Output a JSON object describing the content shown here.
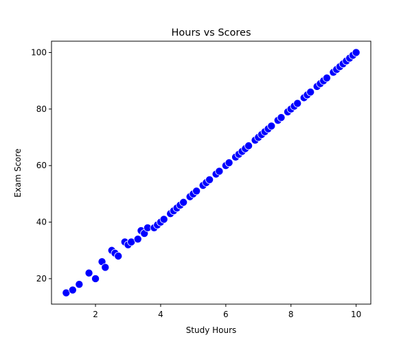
{
  "chart_data": {
    "type": "scatter",
    "title": "Hours vs Scores",
    "xlabel": "Study Hours",
    "ylabel": "Exam Score",
    "xlim": [
      0.65,
      10.45
    ],
    "ylim": [
      11,
      104
    ],
    "xticks": [
      2,
      4,
      6,
      8,
      10
    ],
    "yticks": [
      20,
      40,
      60,
      80,
      100
    ],
    "grid": false,
    "legend": "none",
    "marker_color": "#0000ff",
    "marker_edge_color": "#ffffff",
    "points": [
      {
        "x": 1.1,
        "y": 15
      },
      {
        "x": 1.3,
        "y": 16
      },
      {
        "x": 1.5,
        "y": 18
      },
      {
        "x": 1.8,
        "y": 22
      },
      {
        "x": 2.0,
        "y": 20
      },
      {
        "x": 2.2,
        "y": 26
      },
      {
        "x": 2.3,
        "y": 24
      },
      {
        "x": 2.5,
        "y": 30
      },
      {
        "x": 2.6,
        "y": 29
      },
      {
        "x": 2.7,
        "y": 28
      },
      {
        "x": 2.9,
        "y": 33
      },
      {
        "x": 3.0,
        "y": 32
      },
      {
        "x": 3.1,
        "y": 33
      },
      {
        "x": 3.3,
        "y": 34
      },
      {
        "x": 3.4,
        "y": 37
      },
      {
        "x": 3.5,
        "y": 36
      },
      {
        "x": 3.6,
        "y": 38
      },
      {
        "x": 3.8,
        "y": 38
      },
      {
        "x": 3.9,
        "y": 39
      },
      {
        "x": 4.0,
        "y": 40
      },
      {
        "x": 4.1,
        "y": 41
      },
      {
        "x": 4.3,
        "y": 43
      },
      {
        "x": 4.4,
        "y": 44
      },
      {
        "x": 4.5,
        "y": 45
      },
      {
        "x": 4.6,
        "y": 46
      },
      {
        "x": 4.7,
        "y": 47
      },
      {
        "x": 4.9,
        "y": 49
      },
      {
        "x": 5.0,
        "y": 50
      },
      {
        "x": 5.1,
        "y": 51
      },
      {
        "x": 5.3,
        "y": 53
      },
      {
        "x": 5.4,
        "y": 54
      },
      {
        "x": 5.5,
        "y": 55
      },
      {
        "x": 5.7,
        "y": 57
      },
      {
        "x": 5.8,
        "y": 58
      },
      {
        "x": 6.0,
        "y": 60
      },
      {
        "x": 6.1,
        "y": 61
      },
      {
        "x": 6.3,
        "y": 63
      },
      {
        "x": 6.4,
        "y": 64
      },
      {
        "x": 6.5,
        "y": 65
      },
      {
        "x": 6.6,
        "y": 66
      },
      {
        "x": 6.7,
        "y": 67
      },
      {
        "x": 6.9,
        "y": 69
      },
      {
        "x": 7.0,
        "y": 70
      },
      {
        "x": 7.1,
        "y": 71
      },
      {
        "x": 7.2,
        "y": 72
      },
      {
        "x": 7.3,
        "y": 73
      },
      {
        "x": 7.4,
        "y": 74
      },
      {
        "x": 7.6,
        "y": 76
      },
      {
        "x": 7.7,
        "y": 77
      },
      {
        "x": 7.9,
        "y": 79
      },
      {
        "x": 8.0,
        "y": 80
      },
      {
        "x": 8.1,
        "y": 81
      },
      {
        "x": 8.2,
        "y": 82
      },
      {
        "x": 8.4,
        "y": 84
      },
      {
        "x": 8.5,
        "y": 85
      },
      {
        "x": 8.6,
        "y": 86
      },
      {
        "x": 8.8,
        "y": 88
      },
      {
        "x": 8.9,
        "y": 89
      },
      {
        "x": 9.0,
        "y": 90
      },
      {
        "x": 9.1,
        "y": 91
      },
      {
        "x": 9.3,
        "y": 93
      },
      {
        "x": 9.4,
        "y": 94
      },
      {
        "x": 9.5,
        "y": 95
      },
      {
        "x": 9.6,
        "y": 96
      },
      {
        "x": 9.7,
        "y": 97
      },
      {
        "x": 9.8,
        "y": 98
      },
      {
        "x": 9.9,
        "y": 99
      },
      {
        "x": 10.0,
        "y": 100
      }
    ]
  }
}
